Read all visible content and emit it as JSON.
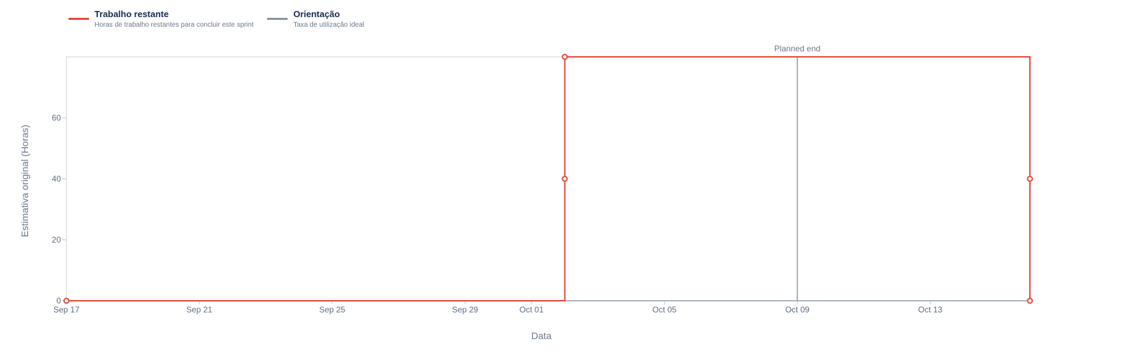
{
  "legend": {
    "items": [
      {
        "title": "Trabalho restante",
        "description": "Horas de trabalho restantes para concluir este sprint",
        "color": "#e5493a"
      },
      {
        "title": "Orientação",
        "description": "Taxa de utilização ideal",
        "color": "#8993a4"
      }
    ]
  },
  "chart_data": {
    "type": "line",
    "xlabel": "Data",
    "ylabel": "Estimativa original (Horas)",
    "x_type": "date",
    "xlim": [
      "2024-09-17",
      "2024-10-16"
    ],
    "ylim": [
      0,
      80
    ],
    "yticks": [
      0,
      20,
      40,
      60
    ],
    "xticks": [
      {
        "date": "2024-09-17",
        "label": "Sep 17"
      },
      {
        "date": "2024-09-21",
        "label": "Sep 21"
      },
      {
        "date": "2024-09-25",
        "label": "Sep 25"
      },
      {
        "date": "2024-09-29",
        "label": "Sep 29"
      },
      {
        "date": "2024-10-01",
        "label": "Oct 01"
      },
      {
        "date": "2024-10-05",
        "label": "Oct 05"
      },
      {
        "date": "2024-10-09",
        "label": "Oct 09"
      },
      {
        "date": "2024-10-13",
        "label": "Oct 13"
      }
    ],
    "grid": false,
    "legend_position": "top-left",
    "series": [
      {
        "name": "Trabalho restante",
        "color": "#e5493a",
        "step": true,
        "points": [
          {
            "x": "2024-09-17",
            "y": 0
          },
          {
            "x": "2024-10-02",
            "y": 0
          },
          {
            "x": "2024-10-02",
            "y": 40
          },
          {
            "x": "2024-10-02",
            "y": 80
          },
          {
            "x": "2024-10-16",
            "y": 80
          },
          {
            "x": "2024-10-16",
            "y": 40
          },
          {
            "x": "2024-10-16",
            "y": 0
          }
        ],
        "markers": [
          {
            "x": "2024-09-17",
            "y": 0
          },
          {
            "x": "2024-10-02",
            "y": 40
          },
          {
            "x": "2024-10-02",
            "y": 80
          },
          {
            "x": "2024-10-16",
            "y": 40
          },
          {
            "x": "2024-10-16",
            "y": 0
          }
        ]
      }
    ],
    "annotations": [
      {
        "type": "vline",
        "x": "2024-10-09",
        "label": "Planned end",
        "color": "#8993a4"
      }
    ]
  }
}
